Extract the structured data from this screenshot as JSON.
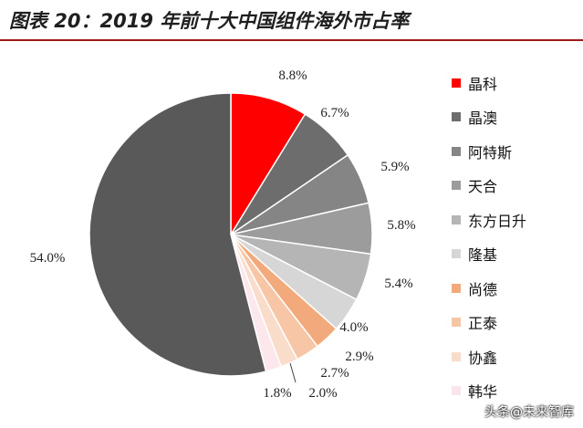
{
  "title": "图表 20：2019 年前十大中国组件海外市占率",
  "watermark": "头条@未来智库",
  "chart_data": {
    "type": "pie",
    "title": "图表 20：2019 年前十大中国组件海外市占率",
    "legend_position": "right",
    "start_angle_deg": 0,
    "direction": "clockwise",
    "slices": [
      {
        "name": "晶科",
        "value": 8.8,
        "label": "8.8%",
        "color": "#ff0000"
      },
      {
        "name": "晶澳",
        "value": 6.7,
        "label": "6.7%",
        "color": "#6d6d6d"
      },
      {
        "name": "阿特斯",
        "value": 5.9,
        "label": "5.9%",
        "color": "#858585"
      },
      {
        "name": "天合",
        "value": 5.8,
        "label": "5.8%",
        "color": "#9c9c9c"
      },
      {
        "name": "东方日升",
        "value": 5.4,
        "label": "5.4%",
        "color": "#b5b5b5"
      },
      {
        "name": "隆基",
        "value": 4.0,
        "label": "4.0%",
        "color": "#d6d6d6"
      },
      {
        "name": "尚德",
        "value": 2.9,
        "label": "2.9%",
        "color": "#f2aa7c"
      },
      {
        "name": "正泰",
        "value": 2.7,
        "label": "2.7%",
        "color": "#f6c6a6"
      },
      {
        "name": "协鑫",
        "value": 2.0,
        "label": "2.0%",
        "color": "#fadccb"
      },
      {
        "name": "韩华",
        "value": 1.8,
        "label": "1.8%",
        "color": "#fce8ec"
      },
      {
        "name": "",
        "value": 54.0,
        "label": "54.0%",
        "color": "#595959"
      }
    ]
  }
}
